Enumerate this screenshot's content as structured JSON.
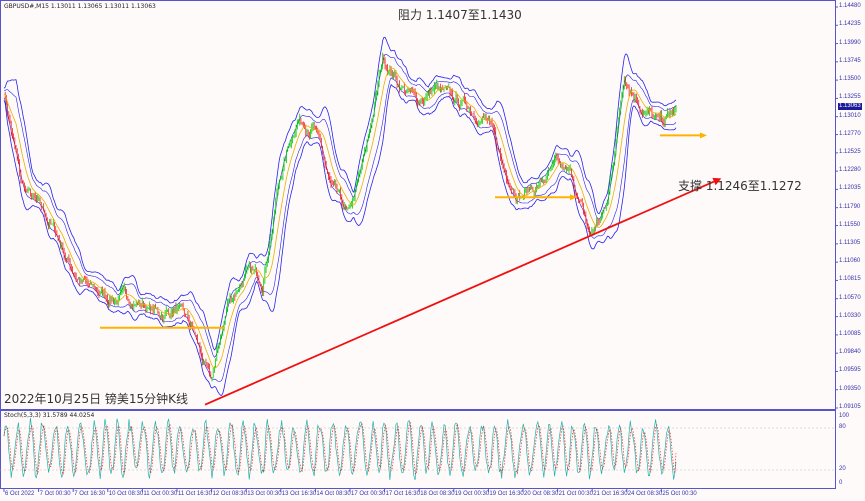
{
  "header": {
    "symbol_info": "GBPUSD#,M15  1.13011 1.13065 1.13011 1.13063"
  },
  "annotations": {
    "resistance": "阻力 1.1407至1.1430",
    "support": "支撑 1.1246至1.1272",
    "caption": "2022年10月25日 镑美15分钟K线"
  },
  "chart_data": [
    {
      "type": "line",
      "title": "GBPUSD#,M15",
      "ylim": [
        1.09105,
        1.1448
      ],
      "y_ticks": [
        "1.14480",
        "1.14235",
        "1.13990",
        "1.13745",
        "1.13500",
        "1.13255",
        "1.13010",
        "1.12770",
        "1.12525",
        "1.12280",
        "1.12035",
        "1.11790",
        "1.11550",
        "1.11305",
        "1.11060",
        "1.10815",
        "1.10570",
        "1.10330",
        "1.10085",
        "1.09840",
        "1.09595",
        "1.09350",
        "1.09105"
      ],
      "current_price": "1.13063",
      "x_ticks": [
        "6 Oct 2022",
        "7 Oct 00:30",
        "7 Oct 16:30",
        "10 Oct 08:30",
        "11 Oct 00:30",
        "11 Oct 16:30",
        "12 Oct 08:30",
        "13 Oct 00:30",
        "13 Oct 16:30",
        "14 Oct 08:30",
        "17 Oct 00:30",
        "17 Oct 16:30",
        "18 Oct 08:30",
        "19 Oct 00:30",
        "19 Oct 16:30",
        "20 Oct 08:30",
        "21 Oct 00:30",
        "21 Oct 16:30",
        "24 Oct 08:30",
        "25 Oct 00:30"
      ],
      "close_samples": [
        1.1337,
        1.121,
        1.1178,
        1.1145,
        1.1095,
        1.1069,
        1.106,
        1.1058,
        1.1052,
        1.1035,
        1.1045,
        1.101,
        1.094,
        1.105,
        1.109,
        1.1082,
        1.122,
        1.13,
        1.129,
        1.12,
        1.1163,
        1.125,
        1.138,
        1.1345,
        1.132,
        1.134,
        1.132,
        1.1315,
        1.13,
        1.123,
        1.12,
        1.121,
        1.123,
        1.1215,
        1.114,
        1.118,
        1.136,
        1.132,
        1.129,
        1.1306
      ],
      "levels": [
        {
          "price": 1.1018,
          "color": "#ffb300"
        },
        {
          "price": 1.1193,
          "color": "#ffb300"
        },
        {
          "price": 1.1276,
          "color": "#ffb300"
        }
      ],
      "trendline": {
        "from": 1.0915,
        "to": 1.1214,
        "color": "#ee1111"
      },
      "colors": {
        "bull": "#00cc00",
        "bear": "#ee2222",
        "bands": "#2222ee"
      }
    },
    {
      "type": "line",
      "title": "Stoch(5,3,3) 31.5789 44.0254",
      "ylim": [
        0,
        100
      ],
      "y_ticks": [
        "100",
        "80",
        "20",
        "0"
      ],
      "series": [
        {
          "value": 31.5789,
          "color": "#20b2aa"
        },
        {
          "value": 44.0254,
          "color": "#ee2222"
        }
      ]
    }
  ]
}
